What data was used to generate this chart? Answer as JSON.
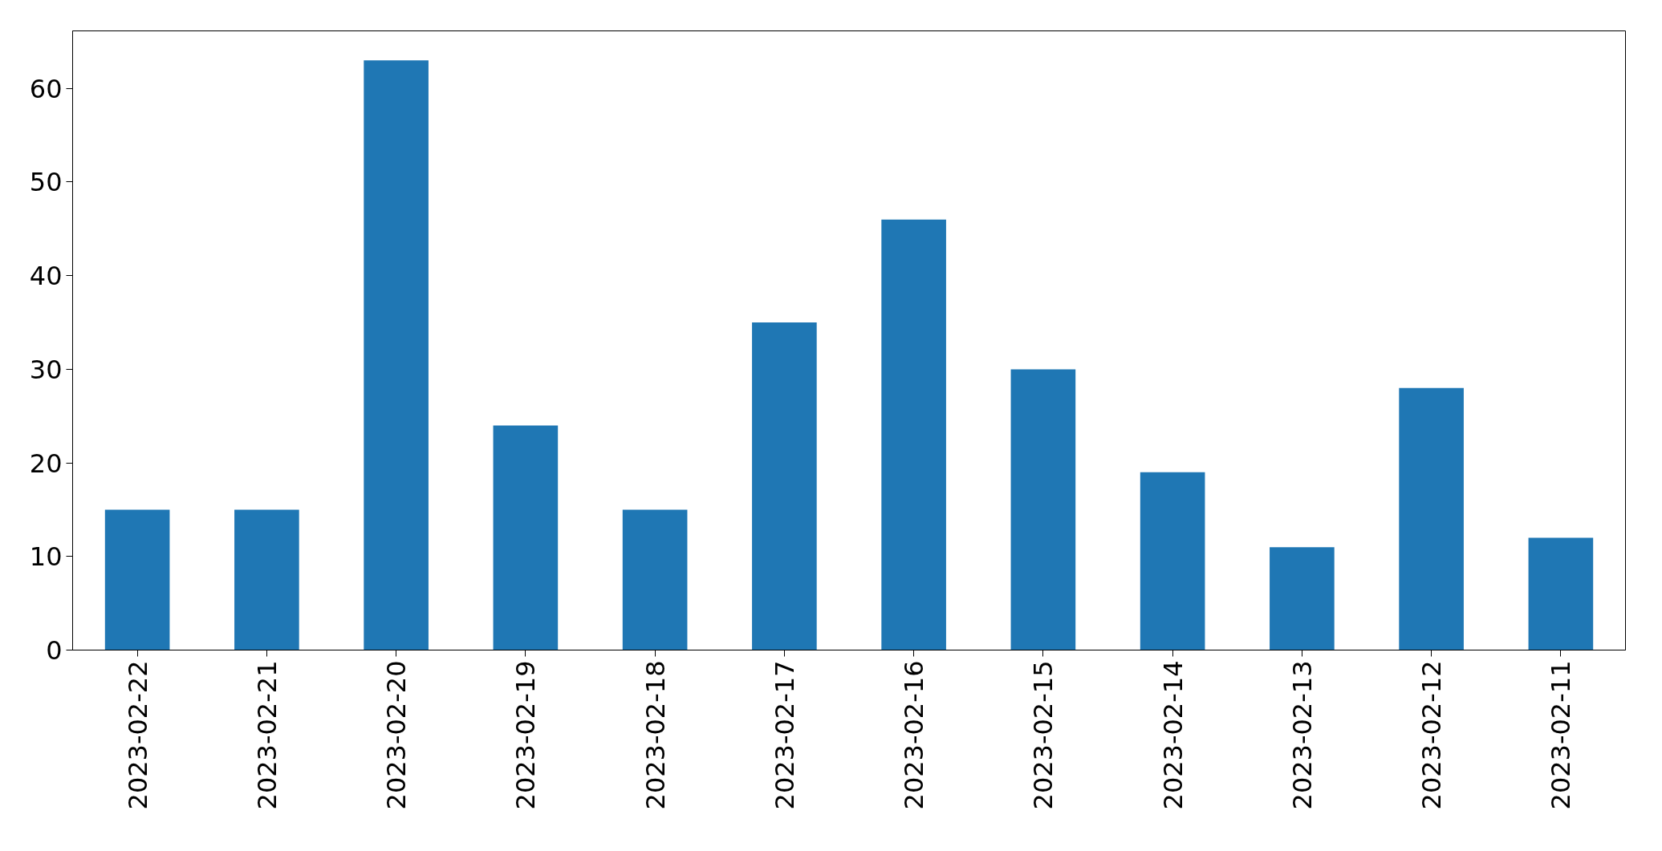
{
  "chart_data": {
    "type": "bar",
    "categories": [
      "2023-02-22",
      "2023-02-21",
      "2023-02-20",
      "2023-02-19",
      "2023-02-18",
      "2023-02-17",
      "2023-02-16",
      "2023-02-15",
      "2023-02-14",
      "2023-02-13",
      "2023-02-12",
      "2023-02-11"
    ],
    "values": [
      15,
      15,
      63,
      24,
      15,
      35,
      46,
      30,
      19,
      11,
      28,
      12
    ],
    "color": "#1f77b4",
    "ylim": [
      0,
      66.15
    ],
    "yticks": [
      0,
      10,
      20,
      30,
      40,
      50,
      60
    ],
    "grid": false
  }
}
